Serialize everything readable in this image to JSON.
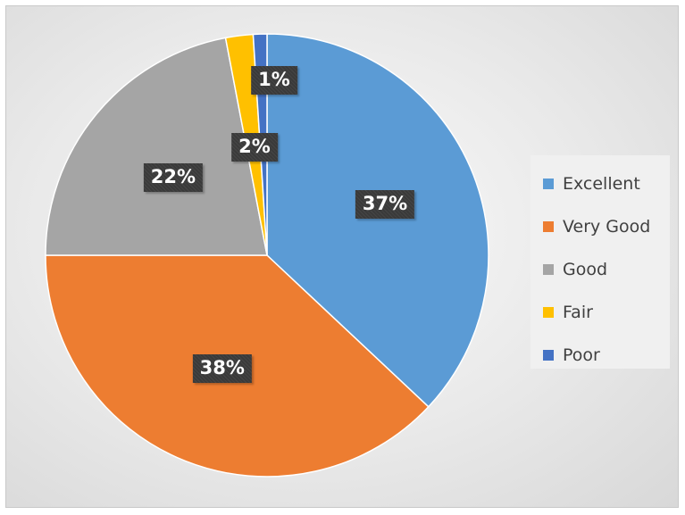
{
  "chart_data": {
    "type": "pie",
    "categories": [
      "Excellent",
      "Very Good",
      "Good",
      "Fair",
      "Poor"
    ],
    "values": [
      37,
      38,
      22,
      2,
      1
    ],
    "value_unit": "%",
    "data_labels": [
      "37%",
      "38%",
      "22%",
      "2%",
      "1%"
    ],
    "colors": [
      "#5b9bd5",
      "#ed7d31",
      "#a5a5a5",
      "#ffc000",
      "#4472c4"
    ],
    "legend_position": "right",
    "title": ""
  }
}
